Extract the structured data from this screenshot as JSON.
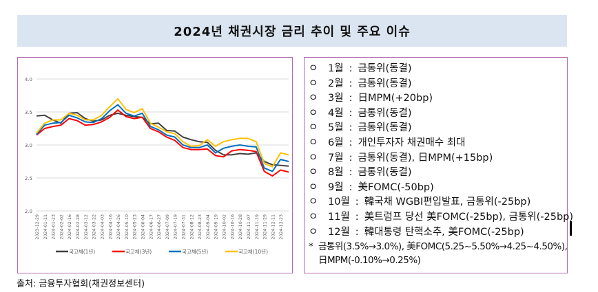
{
  "title": "2024년 채권시장 금리 추이 및 주요 이슈",
  "source": "출처: 금융투자협회(채권정보센터)",
  "issues": [
    {
      "month": "1월",
      "text": "금통위(동결)"
    },
    {
      "month": "2월",
      "text": "금통위(동결)"
    },
    {
      "month": "3월",
      "text": "日MPM(+20bp)"
    },
    {
      "month": "4월",
      "text": "금통위(동결)"
    },
    {
      "month": "5월",
      "text": "금통위(동결)"
    },
    {
      "month": "6월",
      "text": "개인투자자 채권매수 최대"
    },
    {
      "month": "7월",
      "text": "금통위(동결), 日MPM(+15bp)"
    },
    {
      "month": "8월",
      "text": "금통위(동결)"
    },
    {
      "month": "9월",
      "text": "美FOMC(-50bp)"
    },
    {
      "month": "10월",
      "text": "韓국채 WGBI편입발표, 금통위(-25bp)"
    },
    {
      "month": "11월",
      "text": "美트럼프 당선 美FOMC(-25bp), 금통위(-25bp)"
    },
    {
      "month": "12월",
      "text": "韓대통령 탄핵소추, 美FOMC(-25bp)"
    }
  ],
  "bullet": "ㅇ",
  "separator": ":",
  "footnote": {
    "mark": "*",
    "line1": "금통위(3.5%→3.0%), 美FOMC(5.25~5.50%→4.25~4.50%),",
    "line2": "日MPM(-0.10%→0.25%)"
  },
  "chart_data": {
    "type": "line",
    "title": "",
    "xlabel": "",
    "ylabel": "",
    "ylim": [
      2.0,
      4.0
    ],
    "yticks": [
      "2.0",
      "2.5",
      "3.0",
      "3.5",
      "4.0"
    ],
    "grid": true,
    "legend": "bottom",
    "x": [
      "2023-12-29",
      "2024-01-11",
      "2024-01-23",
      "2024-02-02",
      "2024-02-16",
      "2024-02-28",
      "2024-03-12",
      "2024-03-22",
      "2024-04-03",
      "2024-04-16",
      "2024-04-26",
      "2024-05-10",
      "2024-05-23",
      "2024-06-04",
      "2024-06-17",
      "2024-06-27",
      "2024-07-09",
      "2024-07-19",
      "2024-07-31",
      "2024-08-12",
      "2024-08-23",
      "2024-09-04",
      "2024-09-19",
      "2024-10-02",
      "2024-10-16",
      "2024-10-28",
      "2024-11-07",
      "2024-11-19",
      "2024-11-29",
      "2024-12-11",
      "2024-12-23",
      "2024-12-31"
    ],
    "xticks": [
      "2023-12-29",
      "2024-01-11",
      "2024-01-23",
      "2024-02-02",
      "2024-02-16",
      "2024-02-28",
      "2024-03-12",
      "2024-03-22",
      "2024-04-03",
      "2024-04-16",
      "2024-04-26",
      "2024-05-10",
      "2024-05-23",
      "2024-06-04",
      "2024-06-17",
      "2024-06-27",
      "2024-07-09",
      "2024-07-19",
      "2024-07-31",
      "2024-08-12",
      "2024-08-23",
      "2024-09-04",
      "2024-09-19",
      "2024-10-02",
      "2024-10-16",
      "2024-10-28",
      "2024-11-07",
      "2024-11-19",
      "2024-11-29",
      "2024-12-11",
      "2024-12-23"
    ],
    "series": [
      {
        "name": "국고채(1년)",
        "color": "#404040",
        "values": [
          3.44,
          3.45,
          3.38,
          3.33,
          3.48,
          3.49,
          3.4,
          3.36,
          3.38,
          3.45,
          3.48,
          3.45,
          3.43,
          3.42,
          3.32,
          3.33,
          3.22,
          3.21,
          3.12,
          3.08,
          3.05,
          3.04,
          2.92,
          2.85,
          2.85,
          2.87,
          2.86,
          2.88,
          2.75,
          2.7,
          2.69,
          2.68
        ]
      },
      {
        "name": "국고채(3년)",
        "color": "#ff0000",
        "values": [
          3.15,
          3.25,
          3.28,
          3.3,
          3.4,
          3.37,
          3.3,
          3.31,
          3.35,
          3.42,
          3.53,
          3.43,
          3.4,
          3.42,
          3.25,
          3.2,
          3.12,
          3.07,
          2.96,
          2.93,
          2.93,
          2.94,
          2.84,
          2.82,
          2.91,
          2.93,
          2.92,
          2.9,
          2.6,
          2.53,
          2.62,
          2.59
        ]
      },
      {
        "name": "국고채(5년)",
        "color": "#0070c0",
        "values": [
          3.16,
          3.3,
          3.33,
          3.34,
          3.45,
          3.41,
          3.35,
          3.34,
          3.4,
          3.52,
          3.61,
          3.48,
          3.44,
          3.48,
          3.28,
          3.23,
          3.15,
          3.12,
          3.0,
          2.96,
          2.96,
          3.0,
          2.88,
          2.95,
          2.98,
          3.0,
          2.98,
          2.97,
          2.65,
          2.6,
          2.78,
          2.75
        ]
      },
      {
        "name": "국고채(10년)",
        "color": "#ffc000",
        "values": [
          3.18,
          3.33,
          3.38,
          3.38,
          3.48,
          3.45,
          3.38,
          3.38,
          3.45,
          3.58,
          3.7,
          3.54,
          3.49,
          3.55,
          3.33,
          3.27,
          3.2,
          3.17,
          3.05,
          2.98,
          2.99,
          3.08,
          2.98,
          3.05,
          3.08,
          3.1,
          3.1,
          3.05,
          2.72,
          2.67,
          2.88,
          2.85
        ]
      }
    ]
  }
}
